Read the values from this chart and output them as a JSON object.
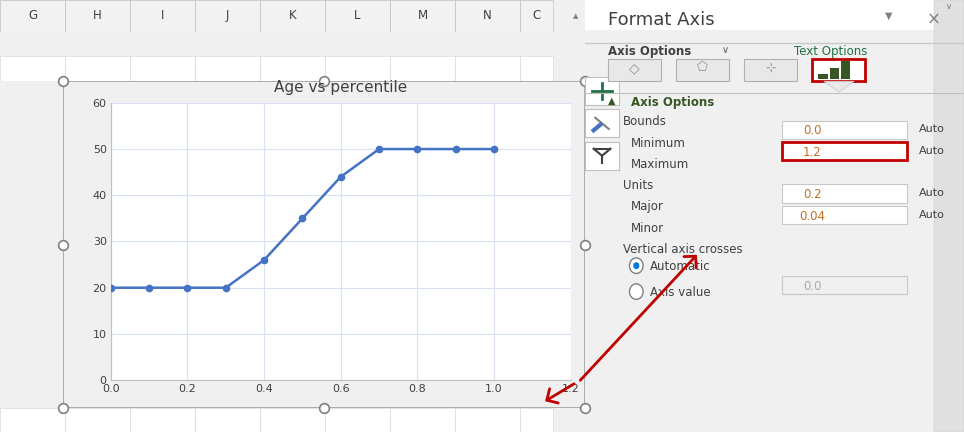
{
  "title": "Age vs percentile",
  "x_data": [
    0.0,
    0.1,
    0.2,
    0.3,
    0.4,
    0.5,
    0.6,
    0.7,
    0.8,
    0.9,
    1.0
  ],
  "y_data": [
    20,
    20,
    20,
    20,
    26,
    35,
    44,
    50,
    50,
    50,
    50
  ],
  "xlim": [
    0.0,
    1.2
  ],
  "ylim": [
    0,
    60
  ],
  "xticks": [
    0.0,
    0.2,
    0.4,
    0.6,
    0.8,
    1.0,
    1.2
  ],
  "yticks": [
    0,
    10,
    20,
    30,
    40,
    50,
    60
  ],
  "line_color": "#4472C4",
  "marker_color": "#4472C4",
  "chart_bg": "#FFFFFF",
  "excel_bg": "#FFFFFF",
  "grid_color": "#D9E1F2",
  "cell_border": "#D4D4D4",
  "col_headers": [
    "G",
    "H",
    "I",
    "J",
    "K",
    "L",
    "M",
    "N",
    "C"
  ],
  "panel_bg": "#E8E8E8",
  "panel_title": "Format Axis",
  "panel_title_color": "#404040",
  "axis_options_label": "Axis Options",
  "axis_options_color": "#375623",
  "text_options_label": "Text Options",
  "text_options_color": "#217346",
  "bounds_minimum": "0.0",
  "bounds_maximum": "1.2",
  "units_major": "0.2",
  "units_minor": "0.04",
  "axis_value_label": "0.0",
  "highlight_box_color": "#C00000",
  "arrow_color": "#C00000",
  "handle_color": "#808080",
  "white": "#FFFFFF",
  "scrollbar_bg": "#E8E8E8",
  "input_text_color": "#C07020",
  "auto_text_color": "#404040",
  "dim_text_color": "#909090"
}
